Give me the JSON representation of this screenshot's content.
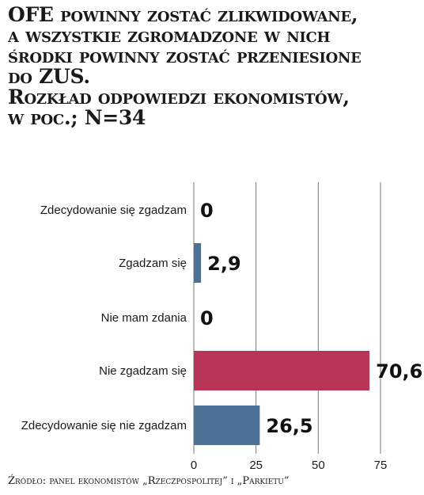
{
  "title_lines": [
    "OFE powinny zostać zlikwidowane,",
    "a wszystkie zgromadzone w nich",
    "środki powinny zostać przeniesione",
    "do ZUS.",
    "Rozkład odpowiedzi ekonomistów,",
    "w poc.; N=34"
  ],
  "source": "Źródło: panel ekonomistów „Rzeczpospolitej” i „Parkietu”",
  "colors": {
    "blue": "#4d7297",
    "red": "#b83557",
    "grid": "#777777",
    "text": "#1a1a1a"
  },
  "chart_data": {
    "type": "bar",
    "orientation": "horizontal",
    "categories": [
      "Zdecydowanie się zgadzam",
      "Zgadzam się",
      "Nie mam zdania",
      "Nie zgadzam się",
      "Zdecydowanie się nie zgadzam"
    ],
    "values": [
      0,
      2.9,
      0,
      70.6,
      26.5
    ],
    "value_labels": [
      "0",
      "2,9",
      "0",
      "70,6",
      "26,5"
    ],
    "bar_colors": [
      "#4d7297",
      "#4d7297",
      "#4d7297",
      "#b83557",
      "#4d7297"
    ],
    "xlim": [
      0,
      75
    ],
    "xticks": [
      0,
      25,
      50,
      75
    ],
    "xtick_labels": [
      "0",
      "25",
      "50",
      "75"
    ],
    "grid": true,
    "legend": "none"
  }
}
